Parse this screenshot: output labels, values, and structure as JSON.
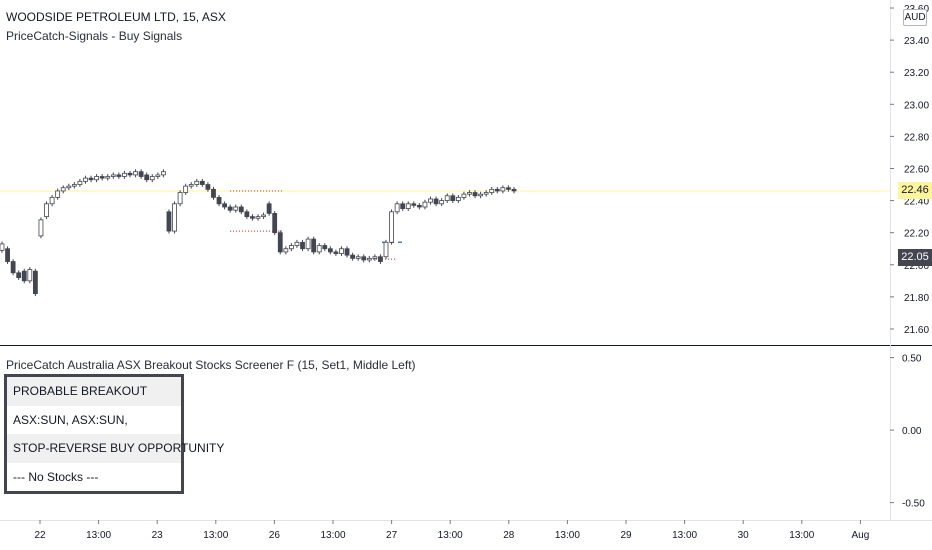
{
  "header": {
    "symbol_title": "WOODSIDE PETROLEUM LTD, 15, ASX",
    "indicator_label": "PriceCatch-Signals - Buy Signals",
    "currency_badge": "AUD"
  },
  "main_axis": {
    "labels": [
      "23.60",
      "23.40",
      "23.20",
      "23.00",
      "22.80",
      "22.60",
      "22.40",
      "22.20",
      "22.00",
      "21.80",
      "21.60"
    ],
    "label_values": [
      23.6,
      23.4,
      23.2,
      23.0,
      22.8,
      22.6,
      22.4,
      22.2,
      22.0,
      21.8,
      21.6
    ],
    "last_price_label": "22.46",
    "last_price_value": 22.46,
    "current_price_label": "22.05",
    "current_price_value": 22.05
  },
  "lower_pane": {
    "title": "PriceCatch Australia ASX Breakout Stocks Screener F (15, Set1, Middle Left)",
    "axis_labels": [
      "0.50",
      "0.00",
      "-0.50"
    ],
    "axis_values": [
      0.5,
      0.0,
      -0.5
    ]
  },
  "screener": {
    "rows": [
      {
        "text": "PROBABLE BREAKOUT",
        "shaded": true
      },
      {
        "text": "ASX:SUN, ASX:SUN,",
        "shaded": false
      },
      {
        "text": "STOP-REVERSE BUY OPPORTUNITY",
        "shaded": true
      },
      {
        "text": "--- No Stocks ---",
        "shaded": false
      }
    ]
  },
  "time_axis": {
    "labels": [
      "22",
      "13:00",
      "23",
      "13:00",
      "26",
      "13:00",
      "27",
      "13:00",
      "28",
      "13:00",
      "29",
      "13:00",
      "30",
      "13:00",
      "Aug"
    ]
  },
  "colors": {
    "up": "#ffffff",
    "down": "#434651",
    "wick": "#434651",
    "last_price_line": "#fff59d",
    "signal_dotted": "#d32f2f",
    "signal_dashed": "#5b7bb8",
    "grid_separator": "#131722"
  },
  "chart_data": {
    "type": "candlestick",
    "ylim": [
      21.5,
      23.65
    ],
    "series": [
      {
        "values_close": [
          22.13,
          22.02,
          21.95,
          21.92,
          21.9,
          21.97,
          21.82,
          22.28,
          22.38,
          22.42,
          22.46,
          22.48,
          22.49,
          22.5,
          22.52,
          22.54,
          22.53,
          22.55,
          22.54,
          22.55,
          22.56,
          22.55,
          22.57,
          22.56,
          22.58,
          22.55,
          22.53,
          22.55,
          22.56,
          22.58,
          22.21,
          22.38,
          22.45,
          22.49,
          22.5,
          22.52,
          22.5,
          22.47,
          22.42,
          22.38,
          22.36,
          22.34,
          22.36,
          22.33,
          22.3,
          22.29,
          22.3,
          22.31,
          22.32,
          22.2,
          22.08,
          22.1,
          22.12,
          22.14,
          22.1,
          22.16,
          22.08,
          22.12,
          22.1,
          22.08,
          22.07,
          22.1,
          22.06,
          22.04,
          22.05,
          22.03,
          22.04,
          22.05,
          22.02,
          22.14,
          22.33,
          22.38,
          22.35,
          22.38,
          22.37,
          22.36,
          22.39,
          22.41,
          22.38,
          22.4,
          22.43,
          22.4,
          22.42,
          22.44,
          22.45,
          22.43,
          22.44,
          22.45,
          22.47,
          22.46,
          22.48,
          22.47,
          22.46
        ],
        "values_open": [
          22.09,
          22.1,
          22.02,
          21.95,
          21.96,
          21.9,
          21.96,
          22.18,
          22.3,
          22.38,
          22.42,
          22.46,
          22.48,
          22.49,
          22.5,
          22.52,
          22.54,
          22.53,
          22.55,
          22.54,
          22.55,
          22.56,
          22.55,
          22.57,
          22.56,
          22.58,
          22.56,
          22.53,
          22.55,
          22.56,
          22.33,
          22.21,
          22.38,
          22.45,
          22.49,
          22.5,
          22.52,
          22.5,
          22.47,
          22.42,
          22.38,
          22.36,
          22.34,
          22.36,
          22.33,
          22.3,
          22.29,
          22.3,
          22.38,
          22.32,
          22.2,
          22.08,
          22.1,
          22.12,
          22.14,
          22.1,
          22.16,
          22.08,
          22.12,
          22.1,
          22.08,
          22.07,
          22.1,
          22.06,
          22.04,
          22.05,
          22.03,
          22.04,
          22.05,
          22.05,
          22.14,
          22.33,
          22.38,
          22.35,
          22.38,
          22.37,
          22.36,
          22.39,
          22.41,
          22.38,
          22.4,
          22.43,
          22.4,
          22.42,
          22.44,
          22.45,
          22.43,
          22.44,
          22.45,
          22.47,
          22.46,
          22.48,
          22.47
        ]
      }
    ]
  }
}
